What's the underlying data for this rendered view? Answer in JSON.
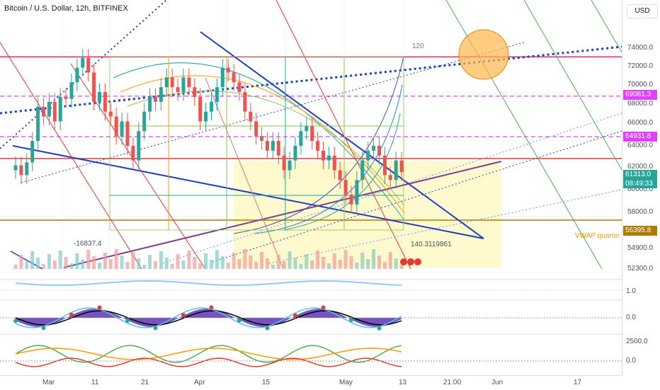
{
  "header": {
    "title": "Bitcoin / U.S. Dollar, 12h, BITFINEX",
    "currency": "USD"
  },
  "colors": {
    "up": "#26a69a",
    "down": "#ef5350",
    "accent_blue": "#1e3fbf",
    "highlight": "#fff9c4",
    "magenta": "#e040fb",
    "red_line": "#e53935"
  },
  "price_axis": {
    "ticks": [
      "74000.0",
      "72000.0",
      "70000.0",
      "68000.0",
      "66000.0",
      "64000.0",
      "62000.0",
      "60000.0",
      "58000.0",
      "54900.0",
      "52300.0"
    ],
    "tags": [
      {
        "text": "69081.3",
        "color": "#e040fb"
      },
      {
        "text": "64931.8",
        "color": "#e040fb"
      },
      {
        "text": "61313.0",
        "sub": "08:49:33",
        "color": "#26a69a"
      },
      {
        "text": "56395.8",
        "color": "#b07a00"
      }
    ]
  },
  "time_axis": {
    "ticks": [
      "Mar",
      "11",
      "21",
      "Apr",
      "15",
      "May",
      "13",
      "21:00",
      "Jun",
      "17"
    ]
  },
  "annotations": {
    "fib_label": "120",
    "vwap_label": "VWAP quarter",
    "volume_label": "-16837.4",
    "value_label": "140.3119861"
  },
  "indicator_axis": {
    "pane1": "1.0",
    "pane2": "0.0",
    "pane3_top": "2500.0",
    "pane3_zero": "0.0"
  },
  "chart_data": {
    "type": "candlestick",
    "title": "Bitcoin / U.S. Dollar, 12h, BITFINEX",
    "ylim": [
      52300,
      75800
    ],
    "levels": [
      {
        "value": 73100,
        "style": "solid",
        "color": "#e91e63"
      },
      {
        "value": 69081.3,
        "style": "dashed",
        "color": "#e040fb"
      },
      {
        "value": 64931.8,
        "style": "dashed",
        "color": "#e040fb"
      },
      {
        "value": 62700,
        "style": "solid",
        "color": "#e53935"
      },
      {
        "value": 56395.8,
        "style": "solid",
        "color": "#b07a00"
      }
    ],
    "closes": [
      62000,
      61000,
      62300,
      64500,
      68000,
      67000,
      68500,
      66500,
      69000,
      68800,
      70500,
      72000,
      73000,
      71500,
      68500,
      69500,
      67500,
      67000,
      65000,
      66500,
      64000,
      62500,
      65500,
      67500,
      69000,
      68500,
      70000,
      71000,
      70000,
      69500,
      71000,
      70000,
      69000,
      66500,
      67500,
      68500,
      70000,
      72000,
      71500,
      70500,
      69500,
      67500,
      66500,
      65000,
      64500,
      63500,
      64500,
      63000,
      61500,
      62500,
      64000,
      65500,
      66000,
      64500,
      63500,
      62500,
      63000,
      61500,
      60500,
      59000,
      58000,
      60500,
      62500,
      63500,
      64000,
      63000,
      61000,
      60500,
      62500,
      61300
    ]
  }
}
